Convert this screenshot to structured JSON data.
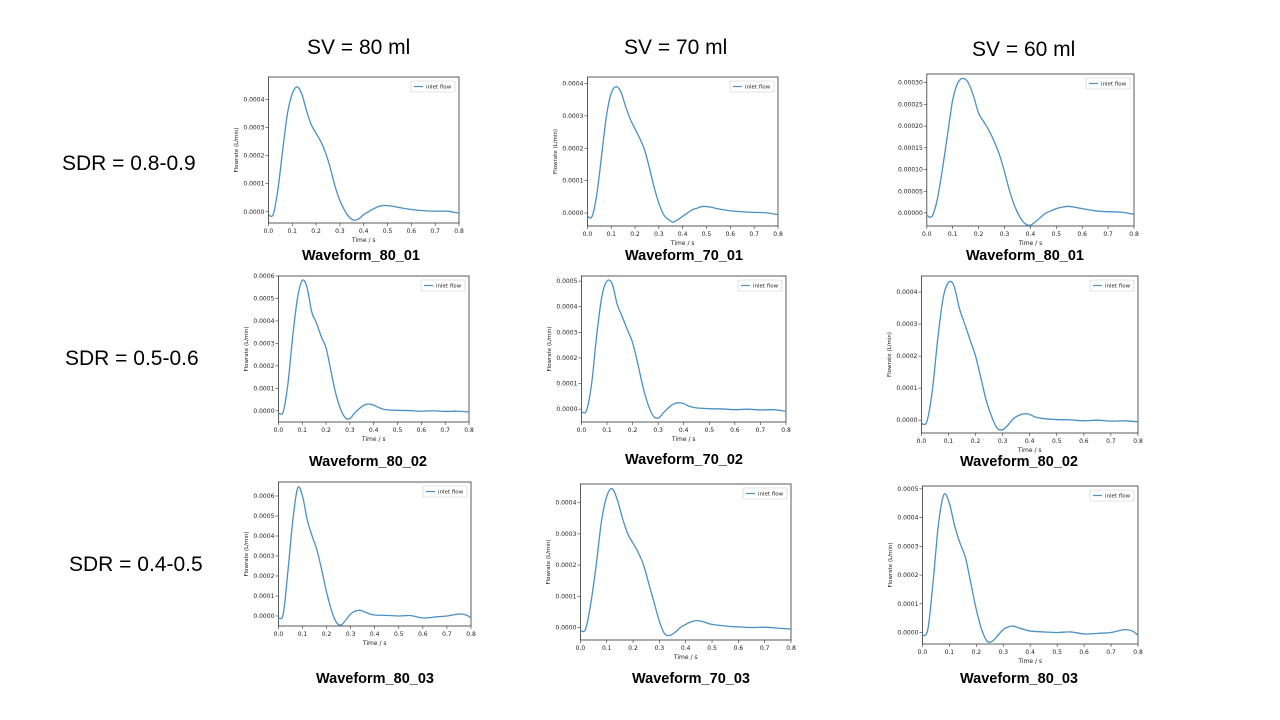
{
  "column_headers": [
    "SV = 80 ml",
    "SV = 70 ml",
    "SV = 60 ml"
  ],
  "row_labels": [
    "SDR = 0.8-0.9",
    "SDR = 0.5-0.6",
    "SDR = 0.4-0.5"
  ],
  "colors": {
    "line": "#4a90c4",
    "axis": "#333333"
  },
  "chart_data": [
    {
      "type": "line",
      "caption": "Waveform_80_01",
      "xlabel": "Time / s",
      "ylabel": "Flowrate (L/min)",
      "xlim": [
        0,
        0.8
      ],
      "xticks": [
        "0.0",
        "0.1",
        "0.2",
        "0.3",
        "0.4",
        "0.5",
        "0.6",
        "0.7",
        "0.8"
      ],
      "ylim": [
        -4e-05,
        0.00048
      ],
      "yticks": [
        0,
        0.0001,
        0.0002,
        0.0003,
        0.0004
      ],
      "yticklabels": [
        "0.0000",
        "0.0001",
        "0.0002",
        "0.0003",
        "0.0004"
      ],
      "legend": "top-right",
      "series": [
        {
          "name": "inlet flow",
          "x": [
            0,
            0.02,
            0.04,
            0.06,
            0.08,
            0.1,
            0.12,
            0.14,
            0.16,
            0.18,
            0.2,
            0.22,
            0.24,
            0.26,
            0.28,
            0.3,
            0.32,
            0.34,
            0.36,
            0.38,
            0.4,
            0.42,
            0.44,
            0.46,
            0.48,
            0.5,
            0.52,
            0.55,
            0.6,
            0.65,
            0.7,
            0.75,
            0.8
          ],
          "y": [
            -1e-05,
            -1e-05,
            8e-05,
            0.00022,
            0.00035,
            0.00042,
            0.000445,
            0.00042,
            0.00036,
            0.00031,
            0.00028,
            0.00025,
            0.00021,
            0.000155,
            9e-05,
            4e-05,
            5e-06,
            -2e-05,
            -3e-05,
            -2.5e-05,
            -1e-05,
            0,
            1e-05,
            1.8e-05,
            2.2e-05,
            2.2e-05,
            2e-05,
            1.5e-05,
            8e-06,
            4e-06,
            2e-06,
            2e-06,
            -5e-06
          ]
        }
      ]
    },
    {
      "type": "line",
      "caption": "Waveform_70_01",
      "xlabel": "Time / s",
      "ylabel": "Flowrate (L/min)",
      "xlim": [
        0,
        0.8
      ],
      "xticks": [
        "0.0",
        "0.1",
        "0.2",
        "0.3",
        "0.4",
        "0.5",
        "0.6",
        "0.7",
        "0.8"
      ],
      "ylim": [
        -4e-05,
        0.00042
      ],
      "yticks": [
        0,
        0.0001,
        0.0002,
        0.0003,
        0.0004
      ],
      "yticklabels": [
        "0.0000",
        "0.0001",
        "0.0002",
        "0.0003",
        "0.0004"
      ],
      "legend": "top-right",
      "series": [
        {
          "name": "inlet flow",
          "x": [
            0,
            0.02,
            0.04,
            0.06,
            0.08,
            0.1,
            0.12,
            0.14,
            0.16,
            0.18,
            0.2,
            0.22,
            0.24,
            0.26,
            0.28,
            0.3,
            0.32,
            0.34,
            0.36,
            0.38,
            0.4,
            0.42,
            0.44,
            0.46,
            0.48,
            0.5,
            0.52,
            0.55,
            0.6,
            0.65,
            0.7,
            0.75,
            0.8
          ],
          "y": [
            -1e-05,
            -1e-05,
            6e-05,
            0.00018,
            0.0003,
            0.00037,
            0.00039,
            0.000375,
            0.00033,
            0.00029,
            0.00026,
            0.00023,
            0.000195,
            0.00014,
            8e-05,
            3e-05,
            -5e-06,
            -2e-05,
            -2.8e-05,
            -2e-05,
            -1e-05,
            0,
            1e-05,
            1.5e-05,
            2e-05,
            2e-05,
            1.8e-05,
            1.3e-05,
            7e-06,
            4e-06,
            2e-06,
            1e-06,
            -5e-06
          ]
        }
      ]
    },
    {
      "type": "line",
      "caption": "Waveform_80_01",
      "xlabel": "Time / s",
      "ylabel": "",
      "xlim": [
        0,
        0.8
      ],
      "xticks": [
        "0.0",
        "0.1",
        "0.2",
        "0.3",
        "0.4",
        "0.5",
        "0.6",
        "0.7",
        "0.8"
      ],
      "ylim": [
        -3e-05,
        0.00032
      ],
      "yticks": [
        0,
        5e-05,
        0.0001,
        0.00015,
        0.0002,
        0.00025,
        0.0003
      ],
      "yticklabels": [
        "0.00000",
        "0.00005",
        "0.00010",
        "0.00015",
        "0.00020",
        "0.00025",
        "0.00030"
      ],
      "legend": "top-right",
      "series": [
        {
          "name": "inlet flow",
          "x": [
            0,
            0.02,
            0.04,
            0.06,
            0.08,
            0.1,
            0.12,
            0.14,
            0.16,
            0.18,
            0.2,
            0.22,
            0.24,
            0.26,
            0.28,
            0.3,
            0.32,
            0.34,
            0.36,
            0.38,
            0.4,
            0.42,
            0.44,
            0.46,
            0.48,
            0.5,
            0.52,
            0.55,
            0.6,
            0.65,
            0.7,
            0.75,
            0.8
          ],
          "y": [
            -5e-06,
            -8e-06,
            3e-05,
            0.0001,
            0.00018,
            0.00026,
            0.0003,
            0.00031,
            0.0003,
            0.00027,
            0.00023,
            0.00021,
            0.00019,
            0.000165,
            0.000135,
            9.5e-05,
            5e-05,
            1.5e-05,
            -1e-05,
            -2.5e-05,
            -2.8e-05,
            -2e-05,
            -1e-05,
            0,
            5e-06,
            1e-05,
            1.3e-05,
            1.5e-05,
            1e-05,
            5e-06,
            3e-06,
            2e-06,
            -3e-06
          ]
        }
      ]
    },
    {
      "type": "line",
      "caption": "Waveform_80_02",
      "xlabel": "Time / s",
      "ylabel": "Flowrate (L/min)",
      "xlim": [
        0,
        0.8
      ],
      "xticks": [
        "0.0",
        "0.1",
        "0.2",
        "0.3",
        "0.4",
        "0.5",
        "0.6",
        "0.7",
        "0.8"
      ],
      "ylim": [
        -5e-05,
        0.0006
      ],
      "yticks": [
        0,
        0.0001,
        0.0002,
        0.0003,
        0.0004,
        0.0005,
        0.0006
      ],
      "yticklabels": [
        "0.0000",
        "0.0001",
        "0.0002",
        "0.0003",
        "0.0004",
        "0.0005",
        "0.0006"
      ],
      "legend": "top-right",
      "series": [
        {
          "name": "inlet flow",
          "x": [
            0,
            0.02,
            0.04,
            0.06,
            0.08,
            0.1,
            0.12,
            0.14,
            0.16,
            0.18,
            0.2,
            0.22,
            0.24,
            0.26,
            0.28,
            0.3,
            0.32,
            0.34,
            0.36,
            0.38,
            0.4,
            0.42,
            0.45,
            0.5,
            0.55,
            0.6,
            0.65,
            0.7,
            0.75,
            0.8
          ],
          "y": [
            -1e-05,
            -5e-06,
            0.00012,
            0.00033,
            0.0005,
            0.00058,
            0.00055,
            0.00044,
            0.00039,
            0.00033,
            0.00028,
            0.00018,
            8e-05,
            1e-05,
            -3e-05,
            -3.5e-05,
            -1e-05,
            1e-05,
            2.5e-05,
            3e-05,
            2.5e-05,
            1.5e-05,
            5e-06,
            2e-06,
            1e-06,
            -2e-06,
            0,
            -3e-06,
            -2e-06,
            -5e-06
          ]
        }
      ]
    },
    {
      "type": "line",
      "caption": "Waveform_70_02",
      "xlabel": "Time / s",
      "ylabel": "Flowrate (L/min)",
      "xlim": [
        0,
        0.8
      ],
      "xticks": [
        "0.0",
        "0.1",
        "0.2",
        "0.3",
        "0.4",
        "0.5",
        "0.6",
        "0.7",
        "0.8"
      ],
      "ylim": [
        -5e-05,
        0.00052
      ],
      "yticks": [
        0,
        0.0001,
        0.0002,
        0.0003,
        0.0004,
        0.0005
      ],
      "yticklabels": [
        "0.0000",
        "0.0001",
        "0.0002",
        "0.0003",
        "0.0004",
        "0.0005"
      ],
      "legend": "top-right",
      "series": [
        {
          "name": "inlet flow",
          "x": [
            0,
            0.02,
            0.04,
            0.06,
            0.08,
            0.1,
            0.12,
            0.14,
            0.16,
            0.18,
            0.2,
            0.22,
            0.24,
            0.26,
            0.28,
            0.3,
            0.32,
            0.34,
            0.36,
            0.38,
            0.4,
            0.42,
            0.45,
            0.5,
            0.55,
            0.6,
            0.65,
            0.7,
            0.75,
            0.8
          ],
          "y": [
            -1e-05,
            -5e-06,
            0.0001,
            0.00029,
            0.00044,
            0.0005,
            0.00049,
            0.00041,
            0.00036,
            0.00031,
            0.00026,
            0.00018,
            9e-05,
            2e-05,
            -2.5e-05,
            -3.5e-05,
            -1.5e-05,
            5e-06,
            2e-05,
            2.5e-05,
            2.2e-05,
            1.2e-05,
            5e-06,
            2e-06,
            1e-06,
            -2e-06,
            0,
            -3e-06,
            -2e-06,
            -8e-06
          ]
        }
      ]
    },
    {
      "type": "line",
      "caption": "Waveform_80_02",
      "xlabel": "Time / s",
      "ylabel": "Flowrate (L/min)",
      "xlim": [
        0,
        0.8
      ],
      "xticks": [
        "0.0",
        "0.1",
        "0.2",
        "0.3",
        "0.4",
        "0.5",
        "0.6",
        "0.7",
        "0.8"
      ],
      "ylim": [
        -4e-05,
        0.00045
      ],
      "yticks": [
        0,
        0.0001,
        0.0002,
        0.0003,
        0.0004
      ],
      "yticklabels": [
        "0.0000",
        "0.0001",
        "0.0002",
        "0.0003",
        "0.0004"
      ],
      "legend": "top-right",
      "series": [
        {
          "name": "inlet flow",
          "x": [
            0,
            0.02,
            0.04,
            0.06,
            0.08,
            0.1,
            0.12,
            0.14,
            0.16,
            0.18,
            0.2,
            0.22,
            0.24,
            0.26,
            0.28,
            0.3,
            0.32,
            0.34,
            0.36,
            0.38,
            0.4,
            0.42,
            0.45,
            0.5,
            0.55,
            0.6,
            0.65,
            0.7,
            0.75,
            0.8
          ],
          "y": [
            -1e-05,
            -5e-06,
            9e-05,
            0.00025,
            0.00038,
            0.00043,
            0.00042,
            0.00035,
            0.0003,
            0.00025,
            0.0002,
            0.00013,
            6e-05,
            1e-05,
            -2.5e-05,
            -3e-05,
            -1.5e-05,
            5e-06,
            1.5e-05,
            2e-05,
            1.8e-05,
            1e-05,
            5e-06,
            2e-06,
            1e-06,
            -2e-06,
            0,
            -3e-06,
            -2e-06,
            -5e-06
          ]
        }
      ]
    },
    {
      "type": "line",
      "caption": "Waveform_80_03",
      "xlabel": "Time / s",
      "ylabel": "Flowrate (L/min)",
      "xlim": [
        0,
        0.8
      ],
      "xticks": [
        "0.0",
        "0.1",
        "0.2",
        "0.3",
        "0.4",
        "0.5",
        "0.6",
        "0.7",
        "0.8"
      ],
      "ylim": [
        -5e-05,
        0.00067
      ],
      "yticks": [
        0,
        0.0001,
        0.0002,
        0.0003,
        0.0004,
        0.0005,
        0.0006
      ],
      "yticklabels": [
        "0.0000",
        "0.0001",
        "0.0002",
        "0.0003",
        "0.0004",
        "0.0005",
        "0.0006"
      ],
      "legend": "top-right",
      "series": [
        {
          "name": "inlet flow",
          "x": [
            0,
            0.02,
            0.04,
            0.06,
            0.08,
            0.1,
            0.12,
            0.14,
            0.16,
            0.18,
            0.2,
            0.22,
            0.24,
            0.26,
            0.28,
            0.3,
            0.32,
            0.34,
            0.36,
            0.38,
            0.4,
            0.45,
            0.5,
            0.55,
            0.6,
            0.65,
            0.7,
            0.75,
            0.78,
            0.8
          ],
          "y": [
            -1e-05,
            1e-05,
            0.00023,
            0.00048,
            0.00064,
            0.0006,
            0.00048,
            0.0004,
            0.00033,
            0.00023,
            0.00012,
            3e-05,
            -3e-05,
            -4.5e-05,
            -2e-05,
            1e-05,
            2.5e-05,
            2.8e-05,
            2e-05,
            1e-05,
            5e-06,
            3e-06,
            0,
            2e-06,
            -1e-05,
            -5e-06,
            0,
            1e-05,
            5e-06,
            -1e-05
          ]
        }
      ]
    },
    {
      "type": "line",
      "caption": "Waveform_70_03",
      "xlabel": "Time / s",
      "ylabel": "Flowrate (L/min)",
      "xlim": [
        0,
        0.8
      ],
      "xticks": [
        "0.0",
        "0.1",
        "0.2",
        "0.3",
        "0.4",
        "0.5",
        "0.6",
        "0.7",
        "0.8"
      ],
      "ylim": [
        -4e-05,
        0.00046
      ],
      "yticks": [
        0,
        0.0001,
        0.0002,
        0.0003,
        0.0004
      ],
      "yticklabels": [
        "0.0000",
        "0.0001",
        "0.0002",
        "0.0003",
        "0.0004"
      ],
      "legend": "top-right",
      "series": [
        {
          "name": "inlet flow",
          "x": [
            0,
            0.02,
            0.04,
            0.06,
            0.08,
            0.1,
            0.12,
            0.14,
            0.16,
            0.18,
            0.2,
            0.22,
            0.24,
            0.26,
            0.28,
            0.3,
            0.32,
            0.34,
            0.36,
            0.38,
            0.4,
            0.42,
            0.44,
            0.46,
            0.48,
            0.5,
            0.55,
            0.6,
            0.65,
            0.7,
            0.75,
            0.8
          ],
          "y": [
            -1e-05,
            -5e-06,
            8e-05,
            0.0002,
            0.00034,
            0.00042,
            0.000445,
            0.00041,
            0.00035,
            0.0003,
            0.00027,
            0.00024,
            0.0002,
            0.00014,
            8e-05,
            2e-05,
            -2e-05,
            -2.5e-05,
            -1.5e-05,
            0,
            1e-05,
            1.8e-05,
            2.2e-05,
            2e-05,
            1.5e-05,
            1e-05,
            5e-06,
            2e-06,
            0,
            1e-06,
            -2e-06,
            -5e-06
          ]
        }
      ]
    },
    {
      "type": "line",
      "caption": "Waveform_80_03",
      "xlabel": "Time / s",
      "ylabel": "Flowrate (L/min)",
      "xlim": [
        0,
        0.8
      ],
      "xticks": [
        "0.0",
        "0.1",
        "0.2",
        "0.3",
        "0.4",
        "0.5",
        "0.6",
        "0.7",
        "0.8"
      ],
      "ylim": [
        -4e-05,
        0.00051
      ],
      "yticks": [
        0,
        0.0001,
        0.0002,
        0.0003,
        0.0004,
        0.0005
      ],
      "yticklabels": [
        "0.0000",
        "0.0001",
        "0.0002",
        "0.0003",
        "0.0004",
        "0.0005"
      ],
      "legend": "top-right",
      "series": [
        {
          "name": "inlet flow",
          "x": [
            0,
            0.02,
            0.04,
            0.06,
            0.08,
            0.1,
            0.12,
            0.14,
            0.16,
            0.18,
            0.2,
            0.22,
            0.24,
            0.26,
            0.28,
            0.3,
            0.32,
            0.34,
            0.36,
            0.38,
            0.4,
            0.45,
            0.5,
            0.55,
            0.6,
            0.65,
            0.7,
            0.75,
            0.78,
            0.8
          ],
          "y": [
            -1e-05,
            1e-05,
            0.00018,
            0.00038,
            0.00048,
            0.00045,
            0.00037,
            0.00031,
            0.00026,
            0.00017,
            8e-05,
            1e-05,
            -3e-05,
            -3e-05,
            -1e-05,
            1e-05,
            2e-05,
            2.2e-05,
            1.5e-05,
            1e-05,
            5e-06,
            2e-06,
            0,
            2e-06,
            -5e-06,
            -3e-06,
            0,
            1e-05,
            5e-06,
            -1e-05
          ]
        }
      ]
    }
  ]
}
